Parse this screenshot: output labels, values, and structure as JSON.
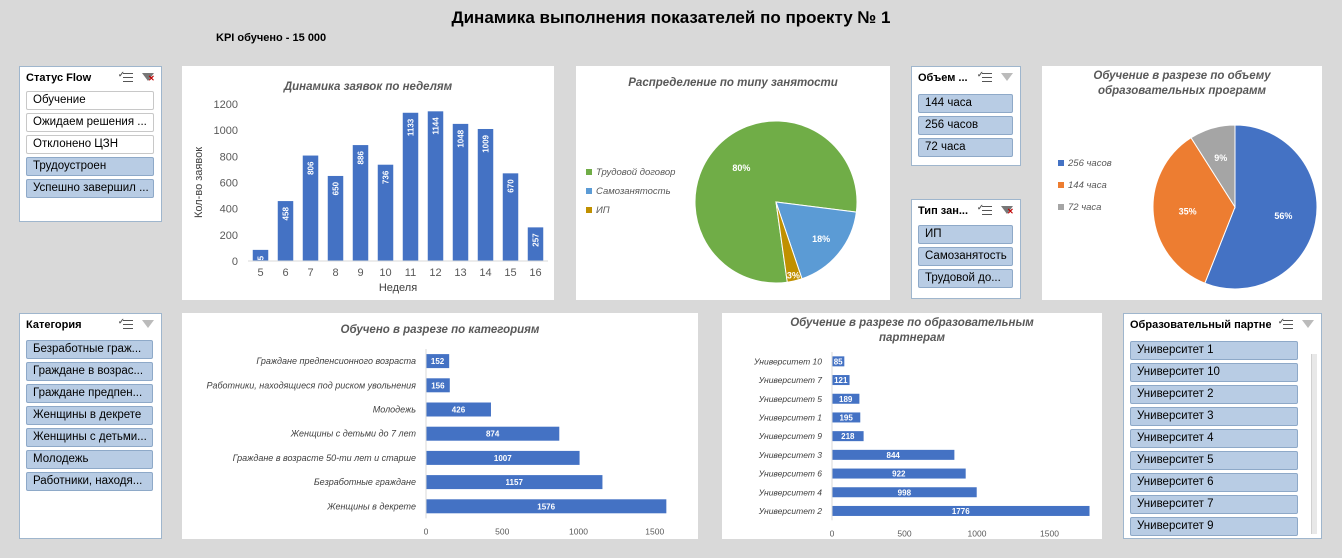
{
  "page": {
    "title": "Динамика выполнения показателей по проекту № 1",
    "kpi": "KPI обучено - 15 000"
  },
  "slicers": {
    "status": {
      "title": "Статус Flow",
      "items": [
        {
          "label": "Обучение",
          "selected": false
        },
        {
          "label": "Ожидаем решения ...",
          "selected": false
        },
        {
          "label": "Отклонено ЦЗН",
          "selected": false
        },
        {
          "label": "Трудоустроен",
          "selected": true
        },
        {
          "label": "Успешно завершил ...",
          "selected": true
        }
      ]
    },
    "volume": {
      "title": "Объем ...",
      "items": [
        {
          "label": "144 часа",
          "selected": true
        },
        {
          "label": "256 часов",
          "selected": true
        },
        {
          "label": "72 часа",
          "selected": true
        }
      ]
    },
    "employment_type": {
      "title": "Тип зан...",
      "items": [
        {
          "label": "ИП",
          "selected": true
        },
        {
          "label": "Самозанятость",
          "selected": true
        },
        {
          "label": "Трудовой до...",
          "selected": true
        }
      ]
    },
    "category": {
      "title": "Категория",
      "items": [
        {
          "label": "Безработные граж...",
          "selected": true
        },
        {
          "label": "Граждане в возрас...",
          "selected": true
        },
        {
          "label": "Граждане предпен...",
          "selected": true
        },
        {
          "label": "Женщины в декрете",
          "selected": true
        },
        {
          "label": "Женщины с детьми...",
          "selected": true
        },
        {
          "label": "Молодежь",
          "selected": true
        },
        {
          "label": "Работники, находя...",
          "selected": true
        }
      ]
    },
    "partner": {
      "title": "Образовательный партнер",
      "items": [
        {
          "label": "Университет 1",
          "selected": true
        },
        {
          "label": "Университет 10",
          "selected": true
        },
        {
          "label": "Университет 2",
          "selected": true
        },
        {
          "label": "Университет 3",
          "selected": true
        },
        {
          "label": "Университет 4",
          "selected": true
        },
        {
          "label": "Университет 5",
          "selected": true
        },
        {
          "label": "Университет 6",
          "selected": true
        },
        {
          "label": "Университет 7",
          "selected": true
        },
        {
          "label": "Университет 9",
          "selected": true
        }
      ]
    }
  },
  "colors": {
    "bar": "#4472c4",
    "green": "#70ad47",
    "light_blue": "#5b9bd5",
    "gold": "#c09000",
    "orange": "#ed7d31",
    "gray": "#a5a5a5"
  },
  "chart_data": [
    {
      "id": "weekly",
      "type": "bar",
      "title": "Динамика заявок по неделям",
      "xlabel": "Неделя",
      "ylabel": "Кол-во заявок",
      "categories": [
        "5",
        "6",
        "7",
        "8",
        "9",
        "10",
        "11",
        "12",
        "13",
        "14",
        "15",
        "16"
      ],
      "values": [
        85,
        458,
        806,
        650,
        886,
        736,
        1133,
        1144,
        1048,
        1009,
        670,
        257
      ],
      "ylim": [
        0,
        1200
      ],
      "yticks": [
        0,
        200,
        400,
        600,
        800,
        1000,
        1200
      ],
      "data_labels": [
        "85",
        "458",
        "806",
        "650",
        "886",
        "736",
        "1133",
        "1144",
        "1048",
        "1009",
        "670",
        "257"
      ]
    },
    {
      "id": "employment",
      "type": "pie",
      "title": "Распределение по типу занятости",
      "labels": [
        "Трудовой договор",
        "Самозанятость",
        "ИП"
      ],
      "values": [
        80,
        18,
        3
      ],
      "data_labels": [
        "80%",
        "18%",
        "3%"
      ],
      "legend": "left"
    },
    {
      "id": "volume",
      "type": "pie",
      "title": "Обучение в разрезе по объему образовательных программ",
      "title_lines": [
        "Обучение в разрезе по объему",
        "образовательных программ"
      ],
      "labels": [
        "256 часов",
        "144 часа",
        "72 часа"
      ],
      "values": [
        56,
        35,
        9
      ],
      "data_labels": [
        "56%",
        "35%",
        "9%"
      ],
      "legend": "left"
    },
    {
      "id": "category",
      "type": "bar",
      "orientation": "horizontal",
      "title": "Обучено в разрезе по категориям",
      "categories": [
        "Граждане предпенсионного возраста",
        "Работники, находящиеся под риском увольнения",
        "Молодежь",
        "Женщины с детьми до 7 лет",
        "Граждане в возрасте 50-ти лет и старше",
        "Безработные граждане",
        "Женщины в декрете"
      ],
      "values": [
        152,
        156,
        426,
        874,
        1007,
        1157,
        1576
      ],
      "xlim": [
        0,
        1600
      ],
      "xticks": [
        0,
        500,
        1000,
        1500
      ]
    },
    {
      "id": "partners",
      "type": "bar",
      "orientation": "horizontal",
      "title": "Обучение в разрезе по образовательным партнерам",
      "title_lines": [
        "Обучение в разрезе по образовательным",
        "партнерам"
      ],
      "categories": [
        "Университет 10",
        "Университет 7",
        "Университет 5",
        "Университет 1",
        "Университет 9",
        "Университет 3",
        "Университет 6",
        "Университет 4",
        "Университет 2"
      ],
      "values": [
        85,
        121,
        189,
        195,
        218,
        844,
        922,
        998,
        1776
      ],
      "xlim": [
        0,
        1800
      ],
      "xticks": [
        0,
        500,
        1000,
        1500
      ]
    }
  ]
}
